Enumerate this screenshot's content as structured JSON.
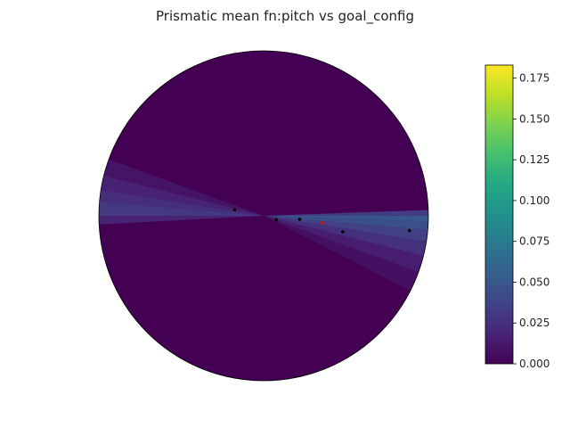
{
  "chart_data": {
    "type": "heatmap",
    "projection": "polar",
    "title": "Prismatic mean fn:pitch vs goal_config",
    "axes_visible": false,
    "grid": false,
    "colormap": "viridis",
    "colorbar": {
      "range": [
        0.0,
        0.183
      ],
      "ticks": [
        0.0,
        0.025,
        0.05,
        0.075,
        0.1,
        0.125,
        0.15,
        0.175
      ],
      "tick_labels": [
        "0.000",
        "0.025",
        "0.050",
        "0.075",
        "0.100",
        "0.125",
        "0.150",
        "0.175"
      ],
      "placement": "right"
    },
    "heatmap": {
      "background_value": 0.0,
      "sectors": [
        {
          "theta_deg": [
            0,
            2
          ],
          "value": 0.032
        },
        {
          "theta_deg": [
            -2,
            0
          ],
          "value": 0.05
        },
        {
          "theta_deg": [
            -5,
            -2
          ],
          "value": 0.045
        },
        {
          "theta_deg": [
            -9,
            -5
          ],
          "value": 0.035
        },
        {
          "theta_deg": [
            -14,
            -9
          ],
          "value": 0.025
        },
        {
          "theta_deg": [
            -20,
            -14
          ],
          "value": 0.015
        },
        {
          "theta_deg": [
            -27,
            -20
          ],
          "value": 0.008
        },
        {
          "theta_deg": [
            160,
            166
          ],
          "value": 0.01
        },
        {
          "theta_deg": [
            166,
            171
          ],
          "value": 0.018
        },
        {
          "theta_deg": [
            171,
            175
          ],
          "value": 0.024
        },
        {
          "theta_deg": [
            175,
            180
          ],
          "value": 0.03
        },
        {
          "theta_deg": [
            180,
            183
          ],
          "value": 0.018
        }
      ]
    },
    "points": [
      {
        "theta_deg": 168.4,
        "r": 0.18,
        "color": "#000000"
      },
      {
        "theta_deg": -17.5,
        "r": 0.08,
        "color": "#000000"
      },
      {
        "theta_deg": -5.6,
        "r": 0.22,
        "color": "#000000"
      },
      {
        "theta_deg": -6.9,
        "r": 0.36,
        "color": "#ff0000"
      },
      {
        "theta_deg": -11.5,
        "r": 0.49,
        "color": "#000000"
      },
      {
        "theta_deg": -5.8,
        "r": 0.89,
        "color": "#000000"
      }
    ]
  }
}
